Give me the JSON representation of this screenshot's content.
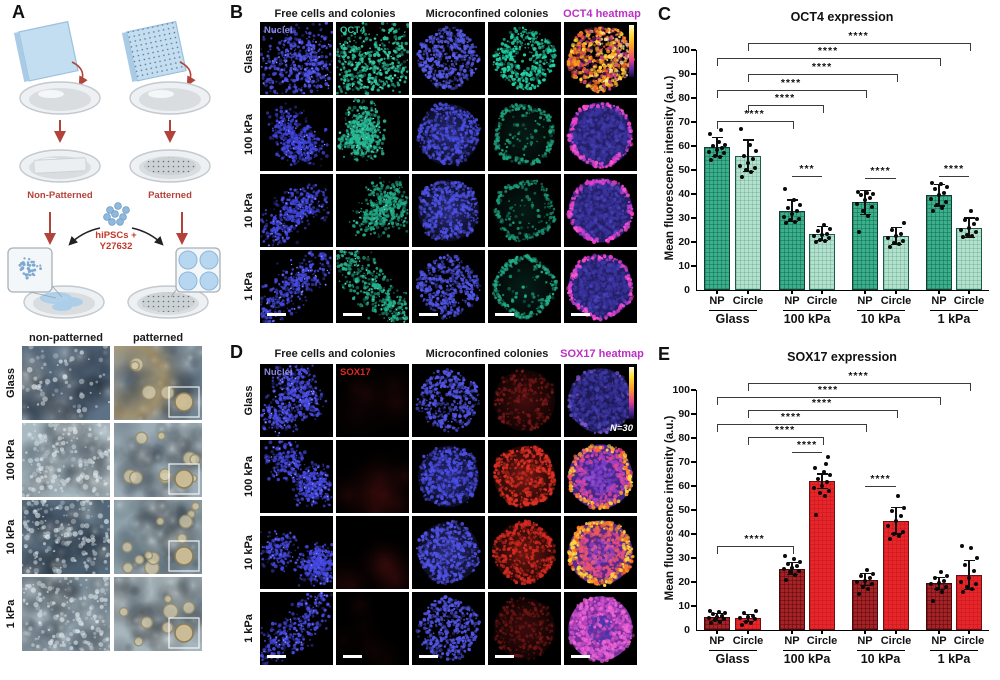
{
  "panelA": {
    "label": "A",
    "schematic": {
      "left_label": "Non-Patterned",
      "right_label": "Patterned",
      "cells_label_line1": "hiPSCs +",
      "cells_label_line2": "Y27632",
      "label_color": "#b5423a",
      "cells_label_color": "#c0392b"
    },
    "micrographs": {
      "col_headers": [
        "non-patterned",
        "patterned"
      ],
      "row_labels": [
        "Glass",
        "100 kPa",
        "10 kPa",
        "1 kPa"
      ]
    }
  },
  "panelB": {
    "label": "B",
    "col_headers": [
      "Free cells and colonies",
      "Microconfined colonies",
      "OCT4 heatmap"
    ],
    "heatmap_header_color": "#bb2fc4",
    "row_labels": [
      "Glass",
      "100 kPa",
      "10 kPa",
      "1 kPa"
    ],
    "overlay_labels": {
      "nuclei": "Nuclei",
      "marker": "OCT4"
    },
    "overlay_colors": {
      "nuclei": "#8a86e0",
      "marker": "#35c39e"
    },
    "cells": [
      [
        "nuclei-field",
        "oct4-field",
        "nuclei-colony",
        "oct4-colony",
        "oct4-heatmap-high"
      ],
      [
        "nuclei-field",
        "oct4-field",
        "nuclei-colony",
        "oct4-colony-rim",
        "oct4-heatmap-low-rim"
      ],
      [
        "nuclei-field",
        "oct4-field",
        "nuclei-colony",
        "oct4-colony-rim",
        "oct4-heatmap-low-rim"
      ],
      [
        "nuclei-field",
        "oct4-field",
        "nuclei-colony",
        "oct4-colony-rim",
        "oct4-heatmap-low-rim"
      ]
    ]
  },
  "panelD": {
    "label": "D",
    "col_headers": [
      "Free cells and colonies",
      "Microconfined colonies",
      "SOX17 heatmap"
    ],
    "heatmap_header_color": "#bb2fc4",
    "row_labels": [
      "Glass",
      "100 kPa",
      "10 kPa",
      "1 kPa"
    ],
    "overlay_labels": {
      "nuclei": "Nuclei",
      "marker": "SOX17"
    },
    "overlay_colors": {
      "nuclei": "#8a86e0",
      "marker": "#e02a22"
    },
    "note": "N=30",
    "cells": [
      [
        "nuclei-field",
        "sox17-field-none",
        "nuclei-colony",
        "sox17-colony-faint",
        "sox17-heatmap-low"
      ],
      [
        "nuclei-field",
        "sox17-field-faint",
        "nuclei-colony",
        "sox17-colony-strong",
        "sox17-heatmap-high-rim"
      ],
      [
        "nuclei-field",
        "sox17-field-faint",
        "nuclei-colony",
        "sox17-colony-strong",
        "sox17-heatmap-high"
      ],
      [
        "nuclei-field",
        "sox17-field-faint",
        "nuclei-colony",
        "sox17-colony-faint",
        "sox17-heatmap-mid"
      ]
    ]
  },
  "chart_data": [
    {
      "letter": "C",
      "type": "bar",
      "title": "OCT4 expression",
      "ylabel": "Mean fluorescence intensity (a.u.)",
      "ylim": [
        0,
        100
      ],
      "ytick": 10,
      "grid": false,
      "groups": [
        "Glass",
        "100 kPa",
        "10 kPa",
        "1 kPa"
      ],
      "series": [
        "NP",
        "Circle"
      ],
      "bars": [
        {
          "group": "Glass",
          "type": "NP",
          "mean": 59.5,
          "err": 4,
          "dots": [
            54,
            55.5,
            56,
            57,
            57.5,
            58.5,
            59,
            60,
            60.5,
            61.5,
            65,
            66.5
          ]
        },
        {
          "group": "Glass",
          "type": "Circle",
          "mean": 56,
          "err": 6.5,
          "dots": [
            47,
            49,
            50,
            51,
            51.5,
            53,
            54.5,
            56,
            58,
            60.5,
            67
          ]
        },
        {
          "group": "100 kPa",
          "type": "NP",
          "mean": 33,
          "err": 4.5,
          "dots": [
            28,
            28.5,
            29,
            29.5,
            30.5,
            31.5,
            33,
            34,
            35.5,
            37.5,
            42
          ]
        },
        {
          "group": "100 kPa",
          "type": "Circle",
          "mean": 23.5,
          "err": 3,
          "dots": [
            20,
            20.5,
            21,
            21.5,
            22.5,
            23,
            23.5,
            24.5,
            25.5,
            27
          ]
        },
        {
          "group": "10 kPa",
          "type": "NP",
          "mean": 36.5,
          "err": 5,
          "dots": [
            24,
            31,
            33,
            34.5,
            36,
            37.5,
            38.5,
            39.5,
            40,
            40.5,
            41
          ]
        },
        {
          "group": "10 kPa",
          "type": "Circle",
          "mean": 22.5,
          "err": 3.5,
          "dots": [
            18,
            19,
            19.5,
            20.5,
            21.5,
            22.5,
            23.5,
            25,
            28
          ]
        },
        {
          "group": "1 kPa",
          "type": "NP",
          "mean": 39.5,
          "err": 4.5,
          "dots": [
            33,
            34,
            35.5,
            36.5,
            38,
            39.5,
            40.5,
            42,
            43,
            44,
            44.5
          ]
        },
        {
          "group": "1 kPa",
          "type": "Circle",
          "mean": 26,
          "err": 4,
          "dots": [
            22,
            22.5,
            23,
            24,
            25,
            26,
            27.5,
            29,
            29.5,
            33
          ]
        }
      ],
      "significance": [
        {
          "from": 0,
          "to": 2,
          "y": 70.5,
          "label": "****",
          "ticks": true
        },
        {
          "from": 1,
          "to": 3,
          "y": 77,
          "label": "****",
          "ticks": true
        },
        {
          "from": 0,
          "to": 4,
          "y": 83.5,
          "label": "****",
          "ticks": true
        },
        {
          "from": 1,
          "to": 5,
          "y": 90,
          "label": "****",
          "ticks": true
        },
        {
          "from": 0,
          "to": 6,
          "y": 96.5,
          "label": "****",
          "ticks": true
        },
        {
          "from": 1,
          "to": 7,
          "y": 103,
          "label": "****",
          "ticks": true
        },
        {
          "from": 2,
          "to": 3,
          "y": 47.5,
          "label": "***",
          "ticks": false
        },
        {
          "from": 4,
          "to": 5,
          "y": 46.5,
          "label": "****",
          "ticks": false
        },
        {
          "from": 6,
          "to": 7,
          "y": 47.5,
          "label": "****",
          "ticks": false
        }
      ],
      "colors": {
        "np_fill": "#3bb08c",
        "np_grid": "rgba(15,90,65,0.40)",
        "np_border": "#123f31",
        "circle_fill": "#b4e0ce",
        "circle_grid": "rgba(60,140,110,0.25)",
        "circle_border": "#1c5c49"
      }
    },
    {
      "letter": "E",
      "type": "bar",
      "title": "SOX17 expression",
      "ylabel": "Mean fluorescence intesnity (a.u.)",
      "ylim": [
        0,
        100
      ],
      "ytick": 10,
      "grid": false,
      "groups": [
        "Glass",
        "100 kPa",
        "10 kPa",
        "1 kPa"
      ],
      "series": [
        "NP",
        "Circle"
      ],
      "bars": [
        {
          "group": "Glass",
          "type": "NP",
          "mean": 5.5,
          "err": 1.5,
          "dots": [
            3,
            3.5,
            4,
            4.5,
            5,
            5.5,
            6,
            6.5,
            7,
            7.5,
            8
          ]
        },
        {
          "group": "Glass",
          "type": "Circle",
          "mean": 5,
          "err": 1.5,
          "dots": [
            2,
            3,
            3.5,
            4.5,
            5,
            5.5,
            6,
            7,
            8
          ]
        },
        {
          "group": "100 kPa",
          "type": "NP",
          "mean": 25.5,
          "err": 2.5,
          "dots": [
            21,
            23,
            24,
            24.5,
            25.5,
            26,
            26.5,
            27.5,
            28.5,
            29.5,
            31
          ]
        },
        {
          "group": "100 kPa",
          "type": "Circle",
          "mean": 62,
          "err": 3,
          "dots": [
            48,
            56,
            57,
            58,
            59,
            60,
            61.5,
            63,
            64.5,
            66,
            67.5,
            69,
            72
          ]
        },
        {
          "group": "10 kPa",
          "type": "NP",
          "mean": 21,
          "err": 2.5,
          "dots": [
            15,
            17,
            18,
            19,
            20,
            20.5,
            21.5,
            22.5,
            23.5,
            25
          ]
        },
        {
          "group": "10 kPa",
          "type": "Circle",
          "mean": 45.5,
          "err": 5.5,
          "dots": [
            38,
            39,
            40,
            41,
            43.5,
            45.5,
            47.5,
            49.5,
            51,
            56
          ]
        },
        {
          "group": "1 kPa",
          "type": "NP",
          "mean": 19.5,
          "err": 2.5,
          "dots": [
            12,
            16,
            17,
            18,
            19,
            19.5,
            20.5,
            21.5,
            22.5,
            24
          ]
        },
        {
          "group": "1 kPa",
          "type": "Circle",
          "mean": 23,
          "err": 6,
          "dots": [
            16,
            17,
            18,
            19,
            20,
            21.5,
            24.5,
            27,
            30,
            34,
            35
          ]
        }
      ],
      "significance": [
        {
          "from": 0,
          "to": 2,
          "y": 35,
          "label": "****",
          "ticks": true
        },
        {
          "from": 2,
          "to": 3,
          "y": 74,
          "label": "****",
          "ticks": false
        },
        {
          "from": 1,
          "to": 3,
          "y": 80.5,
          "label": "****",
          "ticks": true
        },
        {
          "from": 0,
          "to": 4,
          "y": 86,
          "label": "****",
          "ticks": true
        },
        {
          "from": 1,
          "to": 5,
          "y": 91.5,
          "label": "****",
          "ticks": true
        },
        {
          "from": 0,
          "to": 6,
          "y": 97,
          "label": "****",
          "ticks": true
        },
        {
          "from": 1,
          "to": 7,
          "y": 103,
          "label": "****",
          "ticks": true
        },
        {
          "from": 4,
          "to": 5,
          "y": 60,
          "label": "****",
          "ticks": false
        }
      ],
      "colors": {
        "np_fill": "#a32327",
        "np_grid": "rgba(70,0,5,0.40)",
        "np_border": "#450a0c",
        "circle_fill": "#e82529",
        "circle_grid": "rgba(120,10,15,0.18)",
        "circle_border": "#6e0f12"
      }
    }
  ]
}
